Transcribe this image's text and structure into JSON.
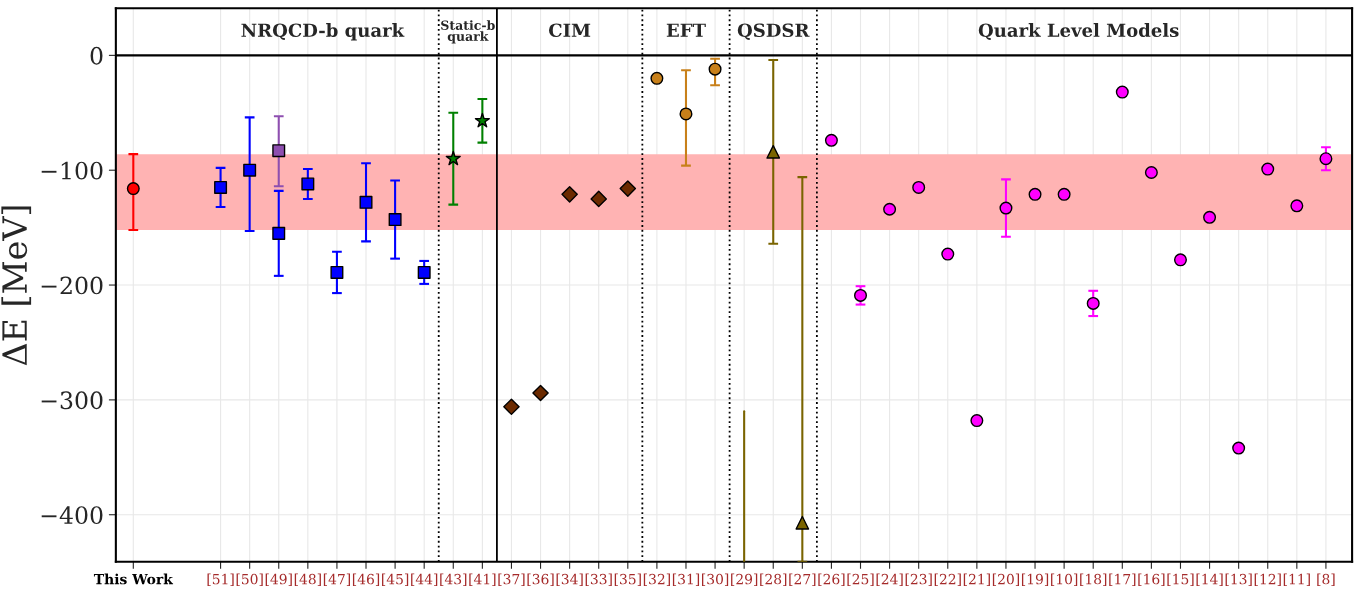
{
  "chart_data": {
    "type": "scatter",
    "ylabel": "ΔE [MeV]",
    "categories": [
      "This Work",
      null,
      null,
      "[51]",
      "[50]",
      "[49]",
      "[48]",
      "[47]",
      "[46]",
      "[45]",
      "[44]",
      "[43]",
      "[41]",
      "[37]",
      "[36]",
      "[34]",
      "[33]",
      "[35]",
      "[32]",
      "[31]",
      "[30]",
      "[29]",
      "[28]",
      "[27]",
      "[26]",
      "[25]",
      "[24]",
      "[23]",
      "[22]",
      "[21]",
      "[20]",
      "[19]",
      "[10]",
      "[18]",
      "[17]",
      "[16]",
      "[15]",
      "[14]",
      "[13]",
      "[12]",
      "[11]",
      "[8]"
    ],
    "ylim": [
      -441,
      41
    ],
    "yticks": [
      {
        "value": 0,
        "label": "0"
      },
      {
        "value": -100,
        "label": "−100"
      },
      {
        "value": -200,
        "label": "−200"
      },
      {
        "value": -300,
        "label": "−300"
      },
      {
        "value": -400,
        "label": "−400"
      }
    ],
    "grid": true,
    "bands": [
      {
        "axis": "y",
        "from": -152,
        "to": -86,
        "color": "#ffb3b3"
      }
    ],
    "annotations": [
      "NRQCD-b quark",
      "Static-b\nquark",
      "CIM",
      "EFT",
      "QSDSR",
      "Quark Level Models"
    ],
    "series": [
      {
        "marker": "circle",
        "color": "#ff0000",
        "values": [
          -116,
          null,
          null,
          null,
          null,
          null,
          null,
          null,
          null,
          null,
          null,
          null,
          null,
          null,
          null,
          null,
          null,
          null,
          null,
          null,
          null,
          null,
          null,
          null,
          null,
          null,
          null,
          null,
          null,
          null,
          null,
          null,
          null,
          null,
          null,
          null,
          null,
          null,
          null,
          null,
          null,
          null
        ],
        "errors": [
          [
            -152,
            -86
          ],
          null,
          null,
          null,
          null,
          null,
          null,
          null,
          null,
          null,
          null,
          null,
          null,
          null,
          null,
          null,
          null,
          null,
          null,
          null,
          null,
          null,
          null,
          null,
          null,
          null,
          null,
          null,
          null,
          null,
          null,
          null,
          null,
          null,
          null,
          null,
          null,
          null,
          null,
          null,
          null,
          null
        ]
      },
      {
        "marker": "square",
        "color": "#0000ff",
        "values": [
          null,
          null,
          null,
          -115,
          -100,
          -155,
          -112,
          -189,
          -128,
          -143,
          -189,
          null,
          null,
          null,
          null,
          null,
          null,
          null,
          null,
          null,
          null,
          null,
          null,
          null,
          null,
          null,
          null,
          null,
          null,
          null,
          null,
          null,
          null,
          null,
          null,
          null,
          null,
          null,
          null,
          null,
          null,
          null
        ],
        "errors": [
          null,
          null,
          null,
          17,
          [
            -153,
            -54
          ],
          37,
          13,
          18,
          34,
          34,
          10,
          null,
          null,
          null,
          null,
          null,
          null,
          null,
          null,
          null,
          null,
          null,
          null,
          null,
          null,
          null,
          null,
          null,
          null,
          null,
          null,
          null,
          null,
          null,
          null,
          null,
          null,
          null,
          null,
          null,
          null,
          null
        ]
      },
      {
        "marker": "square",
        "color": "#8e4fb0",
        "values": [
          null,
          null,
          null,
          null,
          null,
          -83,
          null,
          null,
          null,
          null,
          null,
          null,
          null,
          null,
          null,
          null,
          null,
          null,
          null,
          null,
          null,
          null,
          null,
          null,
          null,
          null,
          null,
          null,
          null,
          null,
          null,
          null,
          null,
          null,
          null,
          null,
          null,
          null,
          null,
          null,
          null,
          null
        ],
        "errors": [
          null,
          null,
          null,
          null,
          null,
          [
            -114,
            -53
          ],
          null,
          null,
          null,
          null,
          null,
          null,
          null,
          null,
          null,
          null,
          null,
          null,
          null,
          null,
          null,
          null,
          null,
          null,
          null,
          null,
          null,
          null,
          null,
          null,
          null,
          null,
          null,
          null,
          null,
          null,
          null,
          null,
          null,
          null,
          null,
          null
        ]
      },
      {
        "marker": "star",
        "color": "#008000",
        "values": [
          null,
          null,
          null,
          null,
          null,
          null,
          null,
          null,
          null,
          null,
          null,
          -90,
          -57,
          null,
          null,
          null,
          null,
          null,
          null,
          null,
          null,
          null,
          null,
          null,
          null,
          null,
          null,
          null,
          null,
          null,
          null,
          null,
          null,
          null,
          null,
          null,
          null,
          null,
          null,
          null,
          null,
          null
        ],
        "errors": [
          null,
          null,
          null,
          null,
          null,
          null,
          null,
          null,
          null,
          null,
          null,
          40,
          19,
          null,
          null,
          null,
          null,
          null,
          null,
          null,
          null,
          null,
          null,
          null,
          null,
          null,
          null,
          null,
          null,
          null,
          null,
          null,
          null,
          null,
          null,
          null,
          null,
          null,
          null,
          null,
          null,
          null
        ]
      },
      {
        "marker": "diamond",
        "color": "#6b2a00",
        "values": [
          null,
          null,
          null,
          null,
          null,
          null,
          null,
          null,
          null,
          null,
          null,
          null,
          null,
          -306,
          -294,
          -121,
          -125,
          -116,
          null,
          null,
          null,
          null,
          null,
          null,
          null,
          null,
          null,
          null,
          null,
          null,
          null,
          null,
          null,
          null,
          null,
          null,
          null,
          null,
          null,
          null,
          null,
          null
        ]
      },
      {
        "marker": "circle",
        "color": "#c8801a",
        "values": [
          null,
          null,
          null,
          null,
          null,
          null,
          null,
          null,
          null,
          null,
          null,
          null,
          null,
          null,
          null,
          null,
          null,
          null,
          -20,
          -51,
          -12,
          null,
          null,
          null,
          null,
          null,
          null,
          null,
          null,
          null,
          null,
          null,
          null,
          null,
          null,
          null,
          null,
          null,
          null,
          null,
          null,
          null
        ],
        "errors": [
          null,
          null,
          null,
          null,
          null,
          null,
          null,
          null,
          null,
          null,
          null,
          null,
          null,
          null,
          null,
          null,
          null,
          null,
          null,
          [
            -96,
            -13
          ],
          [
            -26,
            -3
          ],
          null,
          null,
          null,
          null,
          null,
          null,
          null,
          null,
          null,
          null,
          null,
          null,
          null,
          null,
          null,
          null,
          null,
          null,
          null,
          null,
          null
        ]
      },
      {
        "type": "line",
        "marker": "none",
        "color": "#7a6400",
        "x": [
          "[29]",
          "[29]"
        ],
        "values": [
          -310,
          -441
        ]
      },
      {
        "marker": "triangle",
        "color": "#7a6400",
        "values": [
          null,
          null,
          null,
          null,
          null,
          null,
          null,
          null,
          null,
          null,
          null,
          null,
          null,
          null,
          null,
          null,
          null,
          null,
          null,
          null,
          null,
          null,
          -84,
          -407,
          null,
          null,
          null,
          null,
          null,
          null,
          null,
          null,
          null,
          null,
          null,
          null,
          null,
          null,
          null,
          null,
          null,
          null
        ],
        "errors": [
          null,
          null,
          null,
          null,
          null,
          null,
          null,
          null,
          null,
          null,
          null,
          null,
          null,
          null,
          null,
          null,
          null,
          null,
          null,
          null,
          null,
          null,
          80,
          [
            -441,
            -106
          ],
          null,
          null,
          null,
          null,
          null,
          null,
          null,
          null,
          null,
          null,
          null,
          null,
          null,
          null,
          null,
          null,
          null,
          null
        ]
      },
      {
        "marker": "circle",
        "color": "#ff00ff",
        "values": [
          null,
          null,
          null,
          null,
          null,
          null,
          null,
          null,
          null,
          null,
          null,
          null,
          null,
          null,
          null,
          null,
          null,
          null,
          null,
          null,
          null,
          null,
          null,
          null,
          -74,
          -209,
          -134,
          -115,
          -173,
          -318,
          -133,
          -121,
          -121,
          -216,
          -32,
          -102,
          -178,
          -141,
          -342,
          -99,
          -131,
          -90
        ],
        "errors": [
          null,
          null,
          null,
          null,
          null,
          null,
          null,
          null,
          null,
          null,
          null,
          null,
          null,
          null,
          null,
          null,
          null,
          null,
          null,
          null,
          null,
          null,
          null,
          null,
          null,
          8,
          null,
          null,
          null,
          null,
          25,
          null,
          null,
          11,
          null,
          null,
          null,
          null,
          null,
          null,
          null,
          10
        ]
      }
    ]
  }
}
